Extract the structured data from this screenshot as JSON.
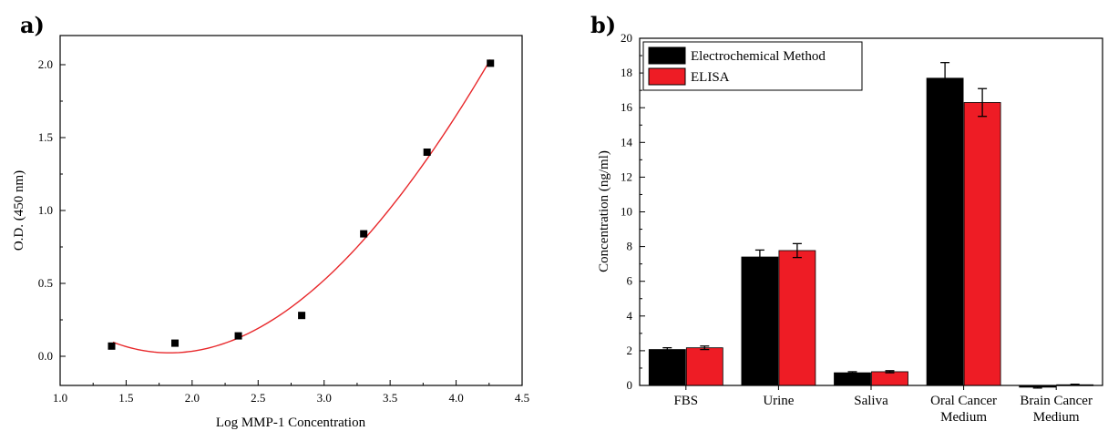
{
  "panel_labels": {
    "a": "a)",
    "b": "b)"
  },
  "colors": {
    "black": "#000000",
    "red": "#ee1c25",
    "fit_line": "#e8282b"
  },
  "chart_data": [
    {
      "type": "scatter",
      "title": "",
      "xlabel": "Log MMP-1 Concentration",
      "ylabel": "O.D. (450 nm)",
      "xlim": [
        1.0,
        4.5
      ],
      "ylim": [
        -0.2,
        2.2
      ],
      "x_ticks": [
        "1.0",
        "1.5",
        "2.0",
        "2.5",
        "3.0",
        "3.5",
        "4.0",
        "4.5"
      ],
      "y_ticks": [
        "0.0",
        "0.5",
        "1.0",
        "1.5",
        "2.0"
      ],
      "x": [
        1.39,
        1.87,
        2.35,
        2.83,
        3.3,
        3.78,
        4.26
      ],
      "y": [
        0.07,
        0.09,
        0.14,
        0.28,
        0.84,
        1.4,
        2.01
      ],
      "fit": {
        "type": "polynomial",
        "degree": 3,
        "x_range": [
          1.4,
          4.26
        ]
      },
      "marker": "square",
      "grid": false,
      "legend": "none"
    },
    {
      "type": "bar",
      "title": "",
      "xlabel": "",
      "ylabel": "Concentration (ng/ml)",
      "ylim": [
        0,
        20
      ],
      "y_ticks": [
        "0",
        "2",
        "4",
        "6",
        "8",
        "10",
        "12",
        "14",
        "16",
        "18",
        "20"
      ],
      "categories": [
        [
          "FBS"
        ],
        [
          "Urine"
        ],
        [
          "Saliva"
        ],
        [
          "Oral Cancer",
          "Medium"
        ],
        [
          "Brain Cancer",
          "Medium"
        ]
      ],
      "series": [
        {
          "name": "Electrochemical Method",
          "color": "#000000",
          "values": [
            2.07,
            7.4,
            0.73,
            17.7,
            -0.1
          ],
          "errors": [
            0.1,
            0.4,
            0.06,
            0.9,
            0.05
          ]
        },
        {
          "name": "ELISA",
          "color": "#ee1c25",
          "values": [
            2.17,
            7.77,
            0.79,
            16.3,
            0.04
          ],
          "errors": [
            0.1,
            0.4,
            0.06,
            0.8,
            0.03
          ]
        }
      ],
      "grid": false,
      "legend": "top-left"
    }
  ]
}
